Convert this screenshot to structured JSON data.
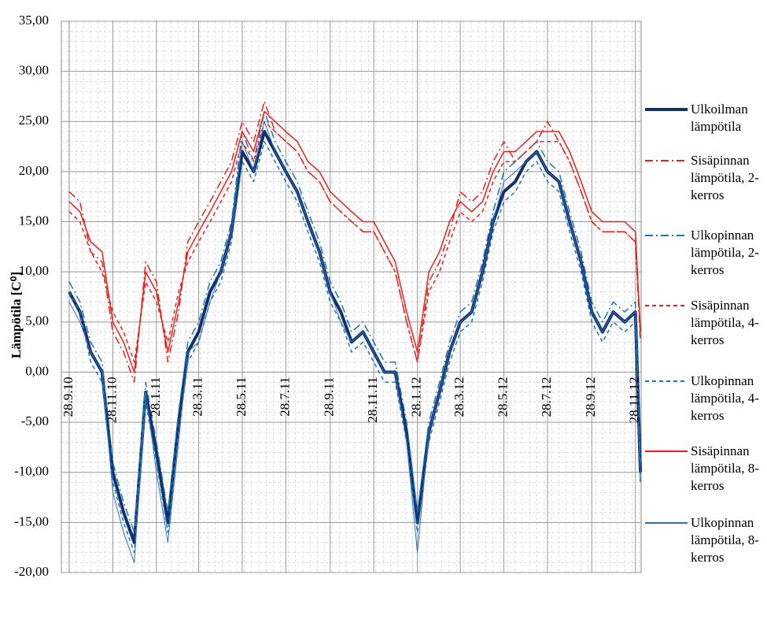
{
  "chart_data": {
    "type": "line",
    "y_label": "Lämpötila [C⁰]",
    "x": [
      "2010-09-28",
      "2010-10-13",
      "2010-10-28",
      "2010-11-13",
      "2010-11-28",
      "2010-12-13",
      "2010-12-28",
      "2011-01-13",
      "2011-01-28",
      "2011-02-13",
      "2011-02-28",
      "2011-03-13",
      "2011-03-28",
      "2011-04-13",
      "2011-04-28",
      "2011-05-13",
      "2011-05-28",
      "2011-06-13",
      "2011-06-28",
      "2011-07-13",
      "2011-07-28",
      "2011-08-13",
      "2011-08-28",
      "2011-09-13",
      "2011-09-28",
      "2011-10-13",
      "2011-10-28",
      "2011-11-13",
      "2011-11-28",
      "2011-12-13",
      "2011-12-28",
      "2012-01-13",
      "2012-01-28",
      "2012-02-13",
      "2012-02-28",
      "2012-03-13",
      "2012-03-28",
      "2012-04-13",
      "2012-04-28",
      "2012-05-13",
      "2012-05-28",
      "2012-06-13",
      "2012-06-28",
      "2012-07-13",
      "2012-07-28",
      "2012-08-13",
      "2012-08-28",
      "2012-09-13",
      "2012-09-28",
      "2012-10-13",
      "2012-10-28",
      "2012-11-13",
      "2012-11-28",
      "2012-12-05"
    ],
    "series": [
      {
        "name": "Ulkoilman lämpötila",
        "color": "#13306e",
        "width": 4,
        "dash": "none",
        "values": [
          8,
          6,
          2,
          0,
          -10,
          -14,
          -17,
          -2,
          -8,
          -15,
          -5,
          2,
          4,
          8,
          10,
          14,
          22,
          20,
          24,
          22,
          20,
          18,
          15,
          12,
          8,
          6,
          3,
          4,
          2,
          0,
          0,
          -6,
          -15,
          -6,
          -2,
          2,
          5,
          6,
          10,
          15,
          18,
          19,
          21,
          22,
          20,
          19,
          15,
          11,
          6,
          4,
          6,
          5,
          6,
          -10
        ]
      },
      {
        "name": "Sisäpinnan lämpötila, 2-kerros",
        "color": "#e8201e",
        "width": 1.5,
        "dash": "10,4,2,4",
        "values": [
          18,
          17,
          12,
          11,
          4,
          2,
          -1,
          11,
          9,
          1,
          6,
          13,
          15,
          17,
          19,
          21,
          25,
          23,
          27,
          24,
          23,
          22,
          20,
          19,
          17,
          16,
          15,
          14,
          14,
          12,
          10,
          5,
          1,
          9,
          11,
          14,
          18,
          17,
          18,
          21,
          23,
          21,
          22,
          23,
          25,
          23,
          21,
          18,
          15,
          14,
          14,
          14,
          13,
          3
        ]
      },
      {
        "name": "Ulkopinnan lämpötila, 2-kerros",
        "color": "#1a78b4",
        "width": 1.5,
        "dash": "10,4,2,4",
        "values": [
          9,
          7,
          3,
          1,
          -9,
          -13,
          -16,
          -1,
          -7,
          -14,
          -4,
          3,
          5,
          9,
          11,
          15,
          24,
          21,
          26,
          23,
          21,
          19,
          16,
          13,
          9,
          7,
          4,
          5,
          3,
          1,
          1,
          -5,
          -14,
          -5,
          -1,
          3,
          6,
          7,
          11,
          16,
          20,
          21,
          22,
          23,
          21,
          20,
          16,
          12,
          7,
          5,
          7,
          6,
          7,
          -9
        ]
      },
      {
        "name": "Sisäpinnan lämpötila, 4-kerros",
        "color": "#e8201e",
        "width": 1.5,
        "dash": "5,4",
        "values": [
          16,
          15,
          12,
          10,
          6,
          4,
          1,
          9,
          7,
          3,
          8,
          11,
          13,
          15,
          17,
          19,
          23,
          21,
          25,
          24,
          23,
          22,
          20,
          19,
          17,
          16,
          15,
          14,
          14,
          12,
          10,
          5,
          1,
          8,
          10,
          13,
          16,
          15,
          16,
          19,
          21,
          21,
          22,
          23,
          23,
          23,
          21,
          18,
          15,
          14,
          14,
          14,
          13,
          4
        ]
      },
      {
        "name": "Ulkopinnan lämpötila, 4-kerros",
        "color": "#1a78b4",
        "width": 1.5,
        "dash": "5,4",
        "values": [
          8,
          6,
          1,
          -1,
          -11,
          -15,
          -18,
          -3,
          -9,
          -16,
          -6,
          1,
          3,
          7,
          9,
          13,
          21,
          19,
          23,
          21,
          19,
          17,
          14,
          11,
          7,
          5,
          2,
          3,
          1,
          -1,
          -1,
          -7,
          -16,
          -7,
          -3,
          1,
          4,
          5,
          9,
          14,
          17,
          18,
          20,
          21,
          19,
          18,
          14,
          10,
          5,
          3,
          5,
          4,
          5,
          -11
        ]
      },
      {
        "name": "Sisäpinnan lämpötila, 8-kerros",
        "color": "#e8201e",
        "width": 1.5,
        "dash": "none",
        "values": [
          17,
          16,
          13,
          12,
          5,
          3,
          0,
          10,
          8,
          2,
          7,
          12,
          14,
          16,
          18,
          20,
          24,
          22,
          26,
          25,
          24,
          23,
          21,
          20,
          18,
          17,
          16,
          15,
          15,
          13,
          11,
          6,
          2,
          10,
          12,
          15,
          17,
          16,
          17,
          20,
          22,
          22,
          23,
          24,
          24,
          24,
          22,
          19,
          16,
          15,
          15,
          15,
          14,
          4
        ]
      },
      {
        "name": "Ulkopinnan lämpötila, 8-kerros",
        "color": "#2f6fb8",
        "width": 1,
        "dash": "none",
        "values": [
          7,
          5,
          2,
          0,
          -12,
          -16,
          -19,
          -2,
          -10,
          -17,
          -7,
          2,
          3,
          7,
          10,
          14,
          23,
          20,
          25,
          22,
          20,
          18,
          15,
          12,
          8,
          5,
          3,
          4,
          2,
          0,
          0,
          -7,
          -18,
          -6,
          -2,
          2,
          5,
          6,
          10,
          15,
          19,
          20,
          21,
          22,
          20,
          19,
          15,
          11,
          6,
          4,
          6,
          5,
          6,
          -11
        ]
      }
    ],
    "xlim": [
      "2010-09-17",
      "2012-12-06"
    ],
    "xticks": [
      {
        "value": "2010-09-28",
        "label": "28.9.10"
      },
      {
        "value": "2010-11-28",
        "label": "28.11.10"
      },
      {
        "value": "2011-01-28",
        "label": "28.1.11"
      },
      {
        "value": "2011-03-28",
        "label": "28.3.11"
      },
      {
        "value": "2011-05-28",
        "label": "28.5.11"
      },
      {
        "value": "2011-07-28",
        "label": "28.7.11"
      },
      {
        "value": "2011-09-28",
        "label": "28.9.11"
      },
      {
        "value": "2011-11-28",
        "label": "28.11.11"
      },
      {
        "value": "2012-01-28",
        "label": "28.1.12"
      },
      {
        "value": "2012-03-28",
        "label": "28.3.12"
      },
      {
        "value": "2012-05-28",
        "label": "28.5.12"
      },
      {
        "value": "2012-07-28",
        "label": "28.7.12"
      },
      {
        "value": "2012-09-28",
        "label": "28.9.12"
      },
      {
        "value": "2012-11-28",
        "label": "28.11.12"
      }
    ],
    "ylim": [
      -20,
      35
    ],
    "yticks": [
      {
        "value": -20,
        "label": "-20,00"
      },
      {
        "value": -15,
        "label": "-15,00"
      },
      {
        "value": -10,
        "label": "-10,00"
      },
      {
        "value": -5,
        "label": "-5,00"
      },
      {
        "value": 0,
        "label": "0,00"
      },
      {
        "value": 5,
        "label": "5,00"
      },
      {
        "value": 10,
        "label": "10,00"
      },
      {
        "value": 15,
        "label": "15,00"
      },
      {
        "value": 20,
        "label": "20,00"
      },
      {
        "value": 25,
        "label": "25,00"
      },
      {
        "value": 30,
        "label": "30,00"
      },
      {
        "value": 35,
        "label": "35,00"
      }
    ],
    "grid": true,
    "legend": "right"
  }
}
